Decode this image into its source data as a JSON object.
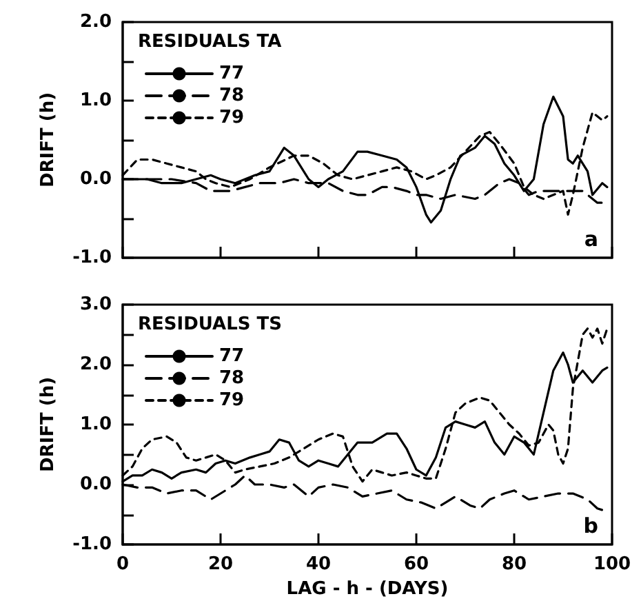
{
  "chart_data": [
    {
      "type": "line",
      "ylabel": "DRIFT (h)",
      "legend_title": "RESIDUALS TA",
      "legend": "top left",
      "grid": false,
      "marker": "none",
      "tick_labels": "y",
      "annotations": [
        "a"
      ],
      "xlim": [
        0,
        100
      ],
      "xticks": [
        0,
        20,
        40,
        60,
        80,
        100
      ],
      "ylim": [
        -1,
        2
      ],
      "yticks": [
        {
          "value": -1,
          "label": "-1.0"
        },
        {
          "value": -0.5,
          "label": null
        },
        {
          "value": 0,
          "label": "0.0"
        },
        {
          "value": 0.5,
          "label": null
        },
        {
          "value": 1,
          "label": "1.0"
        },
        {
          "value": 1.5,
          "label": null
        },
        {
          "value": 2,
          "label": "2.0"
        }
      ],
      "series": [
        {
          "name": "77",
          "color": "#000000",
          "line_style": "solid",
          "x": [
            0,
            5,
            8,
            12,
            15,
            18,
            20,
            23,
            27,
            30,
            33,
            35,
            38,
            40,
            42,
            45,
            48,
            50,
            53,
            56,
            58,
            60,
            62,
            63,
            65,
            67,
            69,
            72,
            74,
            76,
            78,
            80,
            82,
            84,
            86,
            88,
            90,
            91,
            92,
            93,
            95,
            96,
            98,
            99
          ],
          "values": [
            0,
            0,
            -0.05,
            -0.05,
            0,
            0.05,
            0,
            -0.05,
            0.05,
            0.1,
            0.4,
            0.3,
            0,
            -0.1,
            0,
            0.1,
            0.35,
            0.35,
            0.3,
            0.25,
            0.15,
            -0.1,
            -0.45,
            -0.55,
            -0.4,
            0,
            0.3,
            0.4,
            0.55,
            0.45,
            0.2,
            0.05,
            -0.15,
            0,
            0.7,
            1.05,
            0.8,
            0.25,
            0.2,
            0.3,
            0.1,
            -0.2,
            -0.05,
            -0.1
          ]
        },
        {
          "name": "78",
          "color": "#000000",
          "line_style": "dashed",
          "x": [
            0,
            5,
            10,
            15,
            18,
            22,
            25,
            28,
            32,
            35,
            38,
            42,
            45,
            48,
            50,
            53,
            55,
            58,
            60,
            62,
            65,
            68,
            72,
            74,
            77,
            79,
            81,
            83,
            85,
            88,
            91,
            94,
            97,
            99
          ],
          "values": [
            0,
            0,
            0,
            -0.05,
            -0.15,
            -0.15,
            -0.1,
            -0.05,
            -0.05,
            0,
            -0.05,
            -0.05,
            -0.15,
            -0.2,
            -0.2,
            -0.1,
            -0.1,
            -0.15,
            -0.2,
            -0.2,
            -0.25,
            -0.2,
            -0.25,
            -0.2,
            -0.05,
            0,
            -0.05,
            -0.2,
            -0.15,
            -0.15,
            -0.15,
            -0.15,
            -0.3,
            -0.3
          ]
        },
        {
          "name": "79",
          "color": "#000000",
          "line_style": "dotted",
          "x": [
            0,
            3,
            6,
            9,
            12,
            15,
            17,
            19,
            22,
            26,
            30,
            35,
            38,
            41,
            44,
            47,
            50,
            53,
            56,
            59,
            62,
            64,
            67,
            70,
            73,
            75,
            77,
            80,
            82,
            84,
            86,
            88,
            90,
            91,
            92,
            94,
            96,
            97,
            98,
            99
          ],
          "values": [
            0.05,
            0.25,
            0.25,
            0.2,
            0.15,
            0.1,
            0,
            -0.05,
            -0.1,
            0,
            0.15,
            0.3,
            0.3,
            0.2,
            0.05,
            0,
            0.05,
            0.1,
            0.15,
            0.1,
            0,
            0.05,
            0.15,
            0.35,
            0.55,
            0.6,
            0.45,
            0.2,
            -0.1,
            -0.2,
            -0.25,
            -0.2,
            -0.15,
            -0.45,
            -0.2,
            0.4,
            0.85,
            0.8,
            0.75,
            0.8
          ]
        }
      ]
    },
    {
      "type": "line",
      "xlabel": "LAG - h - (DAYS)",
      "ylabel": "DRIFT (h)",
      "legend_title": "RESIDUALS TS",
      "legend": "top left",
      "grid": false,
      "marker": "none",
      "annotations": [
        "b"
      ],
      "xlim": [
        0,
        100
      ],
      "xticks": [
        0,
        20,
        40,
        60,
        80,
        100
      ],
      "ylim": [
        -1,
        3
      ],
      "yticks": [
        {
          "value": -1,
          "label": "-1.0"
        },
        {
          "value": -0.5,
          "label": null
        },
        {
          "value": 0,
          "label": "0.0"
        },
        {
          "value": 0.5,
          "label": null
        },
        {
          "value": 1,
          "label": "1.0"
        },
        {
          "value": 1.5,
          "label": null
        },
        {
          "value": 2,
          "label": "2.0"
        },
        {
          "value": 2.5,
          "label": null
        },
        {
          "value": 3,
          "label": "3.0"
        }
      ],
      "series": [
        {
          "name": "77",
          "color": "#000000",
          "line_style": "solid",
          "x": [
            0,
            2,
            4,
            6,
            8,
            10,
            12,
            15,
            17,
            19,
            21,
            23,
            26,
            28,
            30,
            32,
            34,
            36,
            38,
            40,
            42,
            44,
            46,
            48,
            51,
            54,
            56,
            58,
            60,
            62,
            64,
            66,
            68,
            70,
            72,
            74,
            76,
            78,
            80,
            82,
            84,
            86,
            88,
            90,
            91,
            92,
            94,
            96,
            98,
            99
          ],
          "values": [
            0.05,
            0.15,
            0.15,
            0.25,
            0.2,
            0.1,
            0.2,
            0.25,
            0.2,
            0.35,
            0.4,
            0.35,
            0.45,
            0.5,
            0.55,
            0.75,
            0.7,
            0.4,
            0.3,
            0.4,
            0.35,
            0.3,
            0.5,
            0.7,
            0.7,
            0.85,
            0.85,
            0.6,
            0.25,
            0.15,
            0.45,
            0.95,
            1.05,
            1,
            0.95,
            1.05,
            0.7,
            0.5,
            0.8,
            0.7,
            0.5,
            1.2,
            1.9,
            2.2,
            2,
            1.7,
            1.9,
            1.7,
            1.9,
            1.95
          ]
        },
        {
          "name": "78",
          "color": "#000000",
          "line_style": "dashed",
          "x": [
            0,
            3,
            6,
            9,
            12,
            15,
            18,
            21,
            23,
            25,
            27,
            30,
            33,
            35,
            38,
            40,
            43,
            46,
            49,
            52,
            55,
            58,
            61,
            64,
            66,
            68,
            71,
            73,
            75,
            78,
            80,
            83,
            86,
            89,
            92,
            95,
            97,
            99
          ],
          "values": [
            0,
            -0.05,
            -0.05,
            -0.15,
            -0.1,
            -0.1,
            -0.25,
            -0.1,
            0,
            0.15,
            0,
            0,
            -0.05,
            0,
            -0.2,
            -0.05,
            0,
            -0.05,
            -0.2,
            -0.15,
            -0.1,
            -0.25,
            -0.3,
            -0.4,
            -0.3,
            -0.2,
            -0.35,
            -0.4,
            -0.25,
            -0.15,
            -0.1,
            -0.25,
            -0.2,
            -0.15,
            -0.15,
            -0.25,
            -0.4,
            -0.45
          ]
        },
        {
          "name": "79",
          "color": "#000000",
          "line_style": "dotted",
          "x": [
            0,
            2,
            4,
            6,
            9,
            11,
            13,
            15,
            17,
            19,
            21,
            23,
            25,
            28,
            31,
            34,
            37,
            40,
            43,
            45,
            47,
            49,
            51,
            53,
            55,
            58,
            60,
            62,
            64,
            66,
            68,
            70,
            73,
            75,
            77,
            79,
            81,
            83,
            85,
            87,
            88,
            89,
            90,
            91,
            92,
            94,
            95,
            96,
            97,
            98,
            99
          ],
          "values": [
            0.15,
            0.3,
            0.6,
            0.75,
            0.8,
            0.7,
            0.45,
            0.4,
            0.45,
            0.5,
            0.4,
            0.2,
            0.25,
            0.3,
            0.35,
            0.45,
            0.6,
            0.75,
            0.85,
            0.8,
            0.3,
            0.05,
            0.25,
            0.2,
            0.15,
            0.2,
            0.15,
            0.1,
            0.1,
            0.6,
            1.2,
            1.35,
            1.45,
            1.4,
            1.2,
            1,
            0.85,
            0.65,
            0.7,
            1,
            0.9,
            0.5,
            0.35,
            0.6,
            1.6,
            2.5,
            2.6,
            2.45,
            2.6,
            2.35,
            2.6
          ]
        }
      ]
    }
  ]
}
